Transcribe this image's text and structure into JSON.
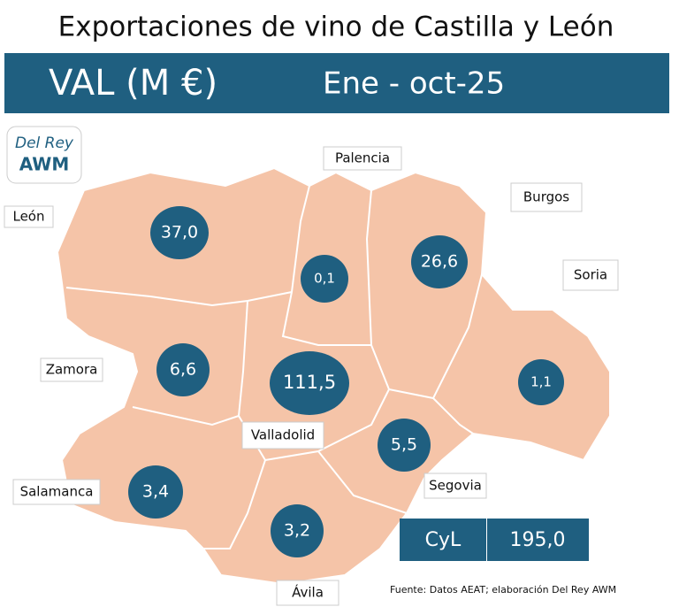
{
  "title": "Exportaciones de vino de Castilla y León",
  "header": {
    "metric": "VAL (M €)",
    "period": "Ene - oct-25"
  },
  "logo": {
    "line1": "Del Rey",
    "line2": "AWM"
  },
  "provinces": [
    {
      "name": "León",
      "value": "37,0"
    },
    {
      "name": "Palencia",
      "value": "0,1"
    },
    {
      "name": "Burgos",
      "value": "26,6"
    },
    {
      "name": "Soria",
      "value": "1,1"
    },
    {
      "name": "Zamora",
      "value": "6,6"
    },
    {
      "name": "Valladolid",
      "value": "111,5"
    },
    {
      "name": "Segovia",
      "value": "5,5"
    },
    {
      "name": "Salamanca",
      "value": "3,4"
    },
    {
      "name": "Ávila",
      "value": "3,2"
    }
  ],
  "total": {
    "label": "CyL",
    "value": "195,0"
  },
  "source": "Fuente: Datos AEAT; elaboración Del Rey AWM"
}
